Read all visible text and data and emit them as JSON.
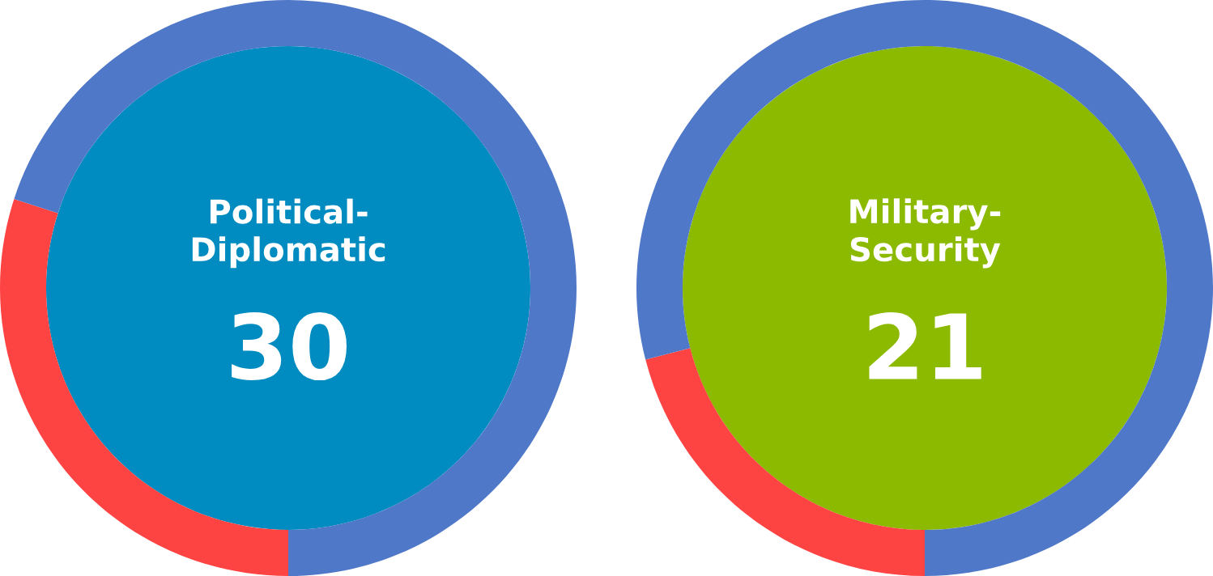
{
  "chart_data": [
    {
      "type": "donut",
      "title": "Political-Diplomatic",
      "categories": [
        null,
        null
      ],
      "values": [
        30,
        70
      ],
      "colors": [
        "#fe4343",
        "#5078c8"
      ],
      "value_labels": [
        "30",
        null
      ]
    },
    {
      "type": "donut",
      "title": "Military-Security",
      "categories": [
        null,
        null
      ],
      "values": [
        21,
        79
      ],
      "colors": [
        "#fe4343",
        "#5078c8"
      ],
      "value_labels": [
        "21",
        null
      ]
    }
  ]
}
